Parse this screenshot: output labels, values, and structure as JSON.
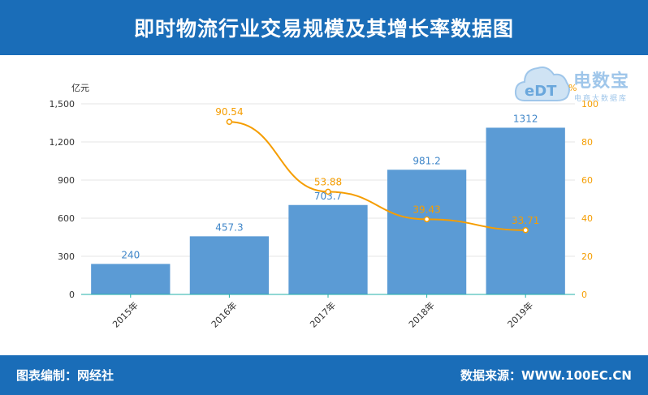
{
  "header": {
    "title": "即时物流行业交易规模及其增长率数据图"
  },
  "footer": {
    "left_label": "图表编制：网经社",
    "right_label": "数据来源：WWW.100EC.CN"
  },
  "logo": {
    "icon_text": "eDT",
    "brand": "电数宝",
    "sub": "电商大数据库"
  },
  "colors": {
    "header_bg": "#1a6db8",
    "bar": "#5b9bd5",
    "line": "#f59d00",
    "axis": "#20b2aa"
  },
  "chart_data": {
    "type": "bar+line",
    "categories": [
      "2015年",
      "2016年",
      "2017年",
      "2018年",
      "2019年"
    ],
    "series": [
      {
        "values": [
          240,
          457.3,
          703.7,
          981.2,
          1312
        ],
        "axis": "left",
        "kind": "bar"
      },
      {
        "values": [
          null,
          90.54,
          53.88,
          39.43,
          33.71
        ],
        "axis": "right",
        "kind": "line"
      }
    ],
    "left_axis": {
      "unit": "亿元",
      "ylim": [
        0,
        1500
      ],
      "ticks": [
        0,
        300,
        600,
        900,
        1200,
        1500
      ],
      "tick_labels": [
        "0",
        "300",
        "600",
        "900",
        "1,200",
        "1,500"
      ]
    },
    "right_axis": {
      "unit": "%",
      "ylim": [
        0,
        100
      ],
      "ticks": [
        0,
        20,
        40,
        60,
        80,
        100
      ],
      "tick_labels": [
        "0",
        "20",
        "40",
        "60",
        "80",
        "100"
      ]
    },
    "bar_labels": [
      "240",
      "457.3",
      "703.7",
      "981.2",
      "1312"
    ],
    "line_labels": [
      "",
      "90.54",
      "53.88",
      "39.43",
      "33.71"
    ],
    "grid": true,
    "legend": "none"
  }
}
